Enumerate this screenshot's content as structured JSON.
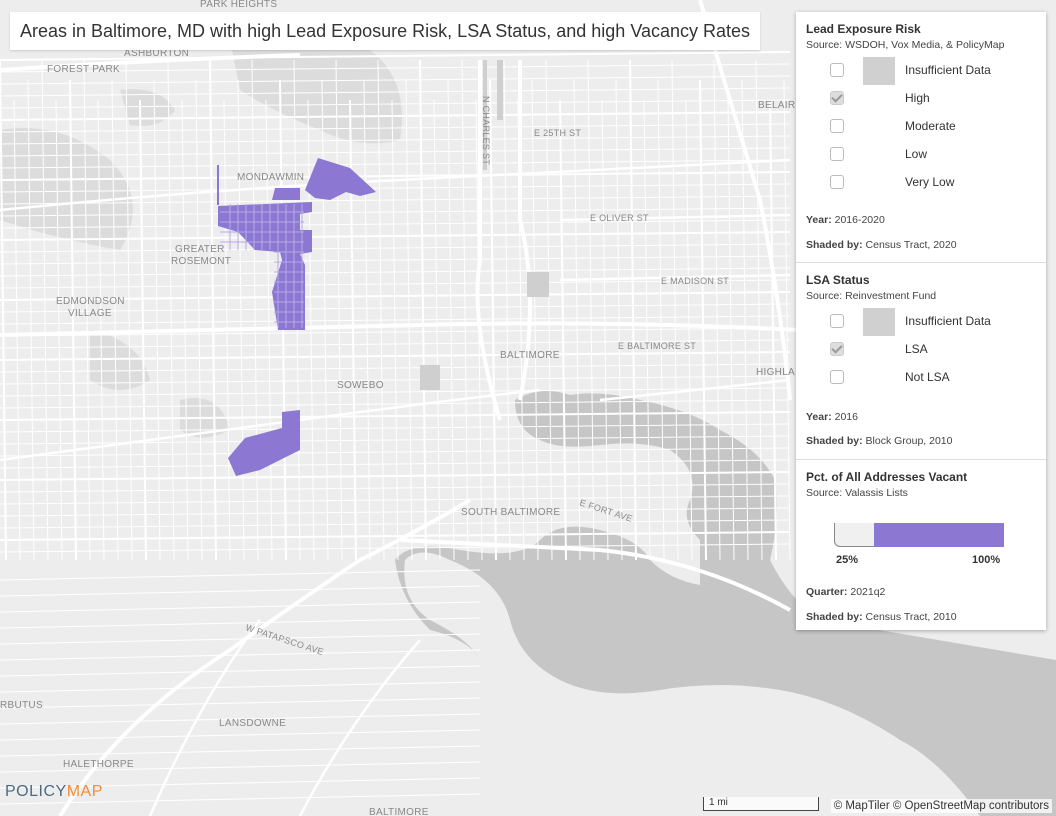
{
  "title": "Areas in Baltimore, MD with high Lead Exposure Risk, LSA Status, and high Vacancy Rates",
  "colors": {
    "highlight": "#8c78d2",
    "water": "#c6c6c6",
    "land": "#ededed",
    "roads": "#ffffff",
    "insufficient_swatch": "#d0d0d0",
    "logo_blue": "#4a6b88",
    "logo_orange": "#ef8d3a"
  },
  "map_labels": {
    "park_heights": "PARK HEIGHTS",
    "ashburton": "ASHBURTON",
    "forest_park": "FOREST PARK",
    "mondawmin": "MONDAWMIN",
    "greater": "GREATER",
    "rosemont": "ROSEMONT",
    "edmondson": "EDMONDSON",
    "village": "VILLAGE",
    "sowebo": "SOWEBO",
    "baltimore": "BALTIMORE",
    "south_baltimore": "SOUTH BALTIMORE",
    "lansdowne": "LANSDOWNE",
    "halethorpe": "HALETHORPE",
    "arbutus": "RBUTUS",
    "belair": "BELAIR",
    "highland": "HIGHLA",
    "baltimore_bottom": "BALTIMORE",
    "e_25th_st": "E 25TH ST",
    "n_charles_st": "N CHARLES ST",
    "e_oliver_st": "E OLIVER ST",
    "e_madison_st": "E MADISON ST",
    "e_baltimore_st": "E BALTIMORE ST",
    "e_fort_ave": "E FORT AVE",
    "w_patapsco_ave": "W PATAPSCO AVE"
  },
  "legend": {
    "lead": {
      "title": "Lead Exposure Risk",
      "source": "Source: WSDOH, Vox Media, & PolicyMap",
      "items": [
        {
          "label": "Insufficient Data",
          "checked": false,
          "swatch": true
        },
        {
          "label": "High",
          "checked": true,
          "swatch": false
        },
        {
          "label": "Moderate",
          "checked": false,
          "swatch": false
        },
        {
          "label": "Low",
          "checked": false,
          "swatch": false
        },
        {
          "label": "Very Low",
          "checked": false,
          "swatch": false
        }
      ],
      "year_label": "Year:",
      "year_value": "2016-2020",
      "shaded_label": "Shaded by:",
      "shaded_value": "Census Tract, 2020"
    },
    "lsa": {
      "title": "LSA Status",
      "source": "Source: Reinvestment Fund",
      "items": [
        {
          "label": "Insufficient Data",
          "checked": false,
          "swatch": true
        },
        {
          "label": "LSA",
          "checked": true,
          "swatch": false
        },
        {
          "label": "Not LSA",
          "checked": false,
          "swatch": false
        }
      ],
      "year_label": "Year:",
      "year_value": "2016",
      "shaded_label": "Shaded by:",
      "shaded_value": "Block Group, 2010"
    },
    "vacancy": {
      "title": "Pct. of All Addresses Vacant",
      "source": "Source: Valassis Lists",
      "range_min": "25%",
      "range_max": "100%",
      "quarter_label": "Quarter:",
      "quarter_value": "2021q2",
      "shaded_label": "Shaded by:",
      "shaded_value": "Census Tract, 2010"
    }
  },
  "scale_label": "1 mi",
  "attribution": "© MapTiler © OpenStreetMap contributors",
  "logo": {
    "part1": "POLICY",
    "part2": "MAP"
  }
}
